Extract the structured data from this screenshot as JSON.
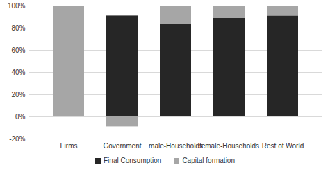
{
  "chart_data": {
    "type": "bar",
    "stacked": true,
    "categories": [
      "Firms",
      "Government",
      "male-Households",
      "female-Households",
      "Rest of World"
    ],
    "series": [
      {
        "name": "Final Consumption",
        "color": "#262626",
        "values": [
          0,
          91,
          84,
          89,
          91
        ]
      },
      {
        "name": "Capital formation",
        "color": "#a6a6a6",
        "values": [
          100,
          -9,
          16,
          11,
          9
        ]
      }
    ],
    "ylim": [
      -20,
      100
    ],
    "yticks": [
      {
        "value": -20,
        "label": "-20%"
      },
      {
        "value": 0,
        "label": "0%"
      },
      {
        "value": 20,
        "label": "20%"
      },
      {
        "value": 40,
        "label": "40%"
      },
      {
        "value": 60,
        "label": "60%"
      },
      {
        "value": 80,
        "label": "80%"
      },
      {
        "value": 100,
        "label": "100%"
      }
    ],
    "grid": true,
    "legend": "bottom"
  }
}
